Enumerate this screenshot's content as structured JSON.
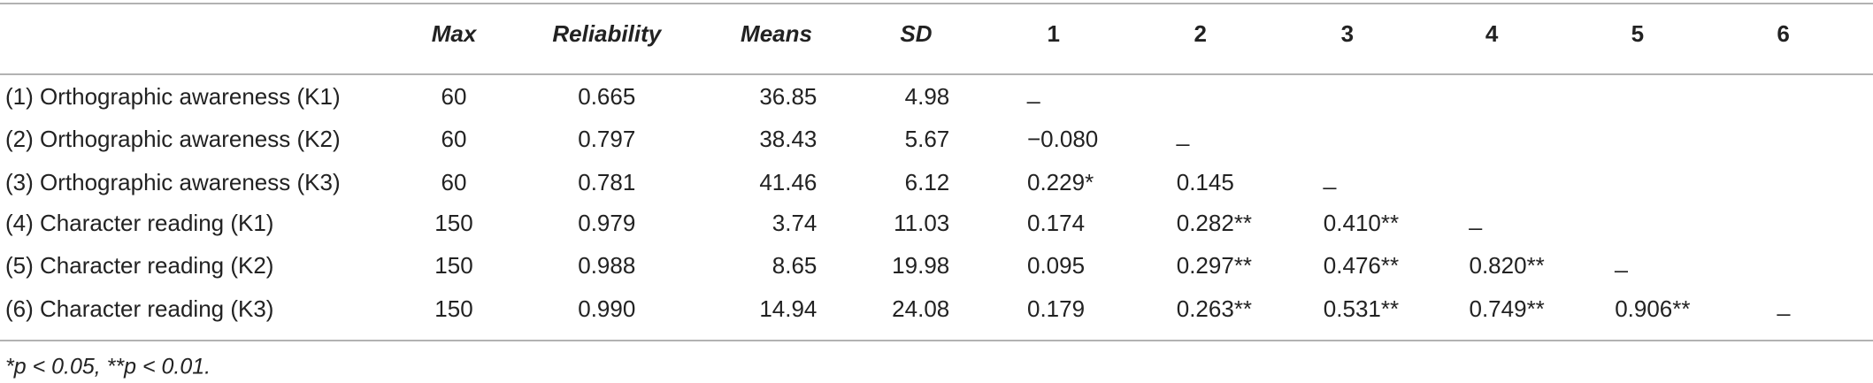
{
  "table": {
    "columns": [
      "Max",
      "Reliability",
      "Means",
      "SD",
      "1",
      "2",
      "3",
      "4",
      "5",
      "6"
    ],
    "rows": [
      {
        "label": "(1) Orthographic awareness (K1)",
        "cells": [
          "60",
          "0.665",
          "36.85",
          "4.98",
          "_"
        ]
      },
      {
        "label": "(2) Orthographic awareness (K2)",
        "cells": [
          "60",
          "0.797",
          "38.43",
          "5.67",
          "−0.080",
          "_"
        ]
      },
      {
        "label": "(3) Orthographic awareness (K3)",
        "cells": [
          "60",
          "0.781",
          "41.46",
          "6.12",
          "0.229*",
          "0.145",
          "_"
        ]
      },
      {
        "label": "(4) Character reading (K1)",
        "cells": [
          "150",
          "0.979",
          "3.74",
          "11.03",
          "0.174",
          "0.282**",
          "0.410**",
          "_"
        ]
      },
      {
        "label": "(5) Character reading (K2)",
        "cells": [
          "150",
          "0.988",
          "8.65",
          "19.98",
          "0.095",
          "0.297**",
          "0.476**",
          "0.820**",
          "_"
        ]
      },
      {
        "label": "(6) Character reading (K3)",
        "cells": [
          "150",
          "0.990",
          "14.94",
          "24.08",
          "0.179",
          "0.263**",
          "0.531**",
          "0.749**",
          "0.906**",
          "_"
        ]
      }
    ],
    "footnote": "*p < 0.05, **p < 0.01."
  }
}
